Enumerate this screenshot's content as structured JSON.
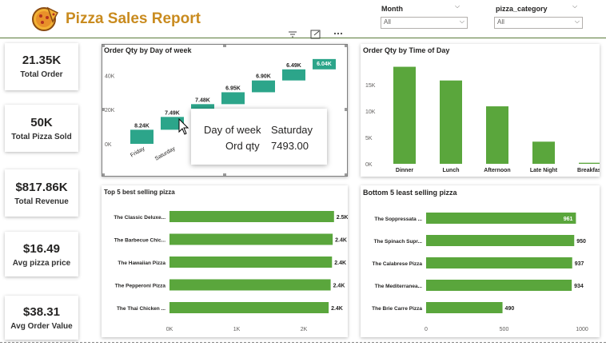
{
  "header": {
    "title": "Pizza Sales Report",
    "slicers": [
      {
        "label": "Month",
        "value": "All"
      },
      {
        "label": "pizza_category",
        "value": "All"
      }
    ]
  },
  "kpis": [
    {
      "value": "21.35K",
      "label": "Total Order"
    },
    {
      "value": "50K",
      "label": "Total Pizza Sold"
    },
    {
      "value": "$817.86K",
      "label": "Total Revenue"
    },
    {
      "value": "$16.49",
      "label": "Avg pizza price"
    },
    {
      "value": "$38.31",
      "label": "Avg Order Value"
    }
  ],
  "visual_header_icons": [
    "filter-icon",
    "focus-mode-icon",
    "more-options-icon"
  ],
  "tooltip": {
    "field1": "Day of week",
    "value1": "Saturday",
    "field2": "Ord qty",
    "value2": "7493.00"
  },
  "colors": {
    "bar_green": "#5aa63c",
    "waterfall_teal": "#2ca58a",
    "title_gold": "#c98b1f"
  },
  "chart_data": [
    {
      "type": "bar",
      "subtype": "waterfall",
      "title": "Order Qty by Day of week",
      "categories": [
        "Friday",
        "Saturday",
        "Thursday",
        "Wednesday",
        "Tuesday",
        "Monday",
        "Sunday"
      ],
      "values": [
        8240,
        7490,
        7480,
        6950,
        6900,
        6490,
        6040
      ],
      "data_labels": [
        "8.24K",
        "7.49K",
        "7.48K",
        "6.95K",
        "6.90K",
        "6.49K",
        "6.04K"
      ],
      "visible_x_labels": [
        "Friday",
        "Saturday",
        "Thurs"
      ],
      "yticks": [
        "0K",
        "20K",
        "40K"
      ],
      "ylim": [
        0,
        50000
      ]
    },
    {
      "type": "bar",
      "title": "Order Qty by Time of Day",
      "categories": [
        "Dinner",
        "Lunch",
        "Afternoon",
        "Late Night",
        "Breakfast"
      ],
      "values": [
        18400,
        15800,
        10900,
        4200,
        200
      ],
      "yticks": [
        "0K",
        "5K",
        "10K",
        "15K"
      ],
      "ylim": [
        0,
        20000
      ]
    },
    {
      "type": "bar",
      "orientation": "horizontal",
      "title": "Top 5 best selling pizza",
      "categories": [
        "The Classic Deluxe...",
        "The Barbecue Chic...",
        "The Hawaiian Pizza",
        "The Pepperoni Pizza",
        "The Thai Chicken ..."
      ],
      "values": [
        2450,
        2430,
        2420,
        2400,
        2370
      ],
      "data_labels": [
        "2.5K",
        "2.4K",
        "2.4K",
        "2.4K",
        "2.4K"
      ],
      "xticks": [
        "0K",
        "1K",
        "2K"
      ],
      "xlim": [
        0,
        2500
      ]
    },
    {
      "type": "bar",
      "orientation": "horizontal",
      "title": "Bottom 5 least selling pizza",
      "categories": [
        "The Soppressata ...",
        "The Spinach Supr...",
        "The Calabrese Pizza",
        "The Mediterranea...",
        "The Brie Carre Pizza"
      ],
      "values": [
        961,
        950,
        937,
        934,
        490
      ],
      "data_labels": [
        "961",
        "950",
        "937",
        "934",
        "490"
      ],
      "xticks": [
        "0",
        "500",
        "1000"
      ],
      "xlim": [
        0,
        1000
      ]
    }
  ]
}
